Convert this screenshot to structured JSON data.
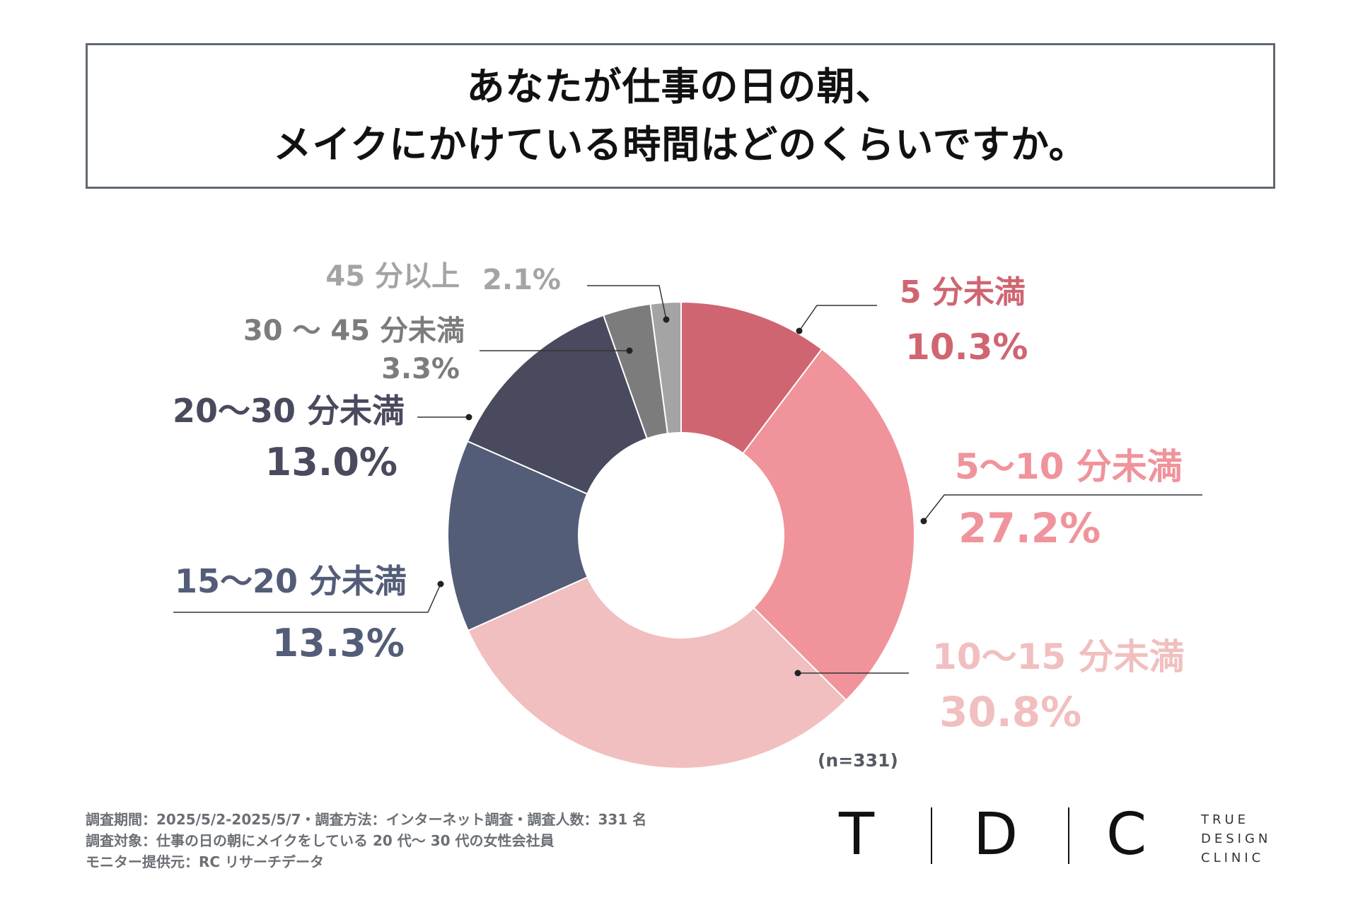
{
  "title": {
    "line1": "あなたが仕事の日の朝、",
    "line2": "メイクにかけている時間はどのくらいですか。"
  },
  "chart_data": {
    "type": "pie",
    "variant": "donut",
    "slices": [
      {
        "label": "5 分未満",
        "value": 10.3,
        "display": "10.3%",
        "color": "#d06572"
      },
      {
        "label": "5〜10 分未満",
        "value": 27.2,
        "display": "27.2%",
        "color": "#f0939b"
      },
      {
        "label": "10〜15 分未満",
        "value": 30.8,
        "display": "30.8%",
        "color": "#f1bfbf"
      },
      {
        "label": "15〜20 分未満",
        "value": 13.3,
        "display": "13.3%",
        "color": "#535d78"
      },
      {
        "label": "20〜30 分未満",
        "value": 13.0,
        "display": "13.0%",
        "color": "#4a4a5e"
      },
      {
        "label": "30 〜 45 分未満",
        "value": 3.3,
        "display": "3.3%",
        "color": "#7c7c7c"
      },
      {
        "label": "45 分以上",
        "value": 2.1,
        "display": "2.1%",
        "color": "#a4a4a4"
      }
    ],
    "legend": "none",
    "annotation": "(n=331)"
  },
  "footer": {
    "line1": "調査期間：2025/5/2-2025/5/7・調査方法：インターネット調査・調査人数：331 名",
    "line2": "調査対象：仕事の日の朝にメイクをしている 20 代〜 30 代の女性会社員",
    "line3": "モニター提供元：RC リサーチデータ"
  },
  "logo": {
    "letters": [
      "T",
      "D",
      "C"
    ],
    "sub": [
      "TRUE",
      "DESIGN",
      "CLINIC"
    ]
  }
}
